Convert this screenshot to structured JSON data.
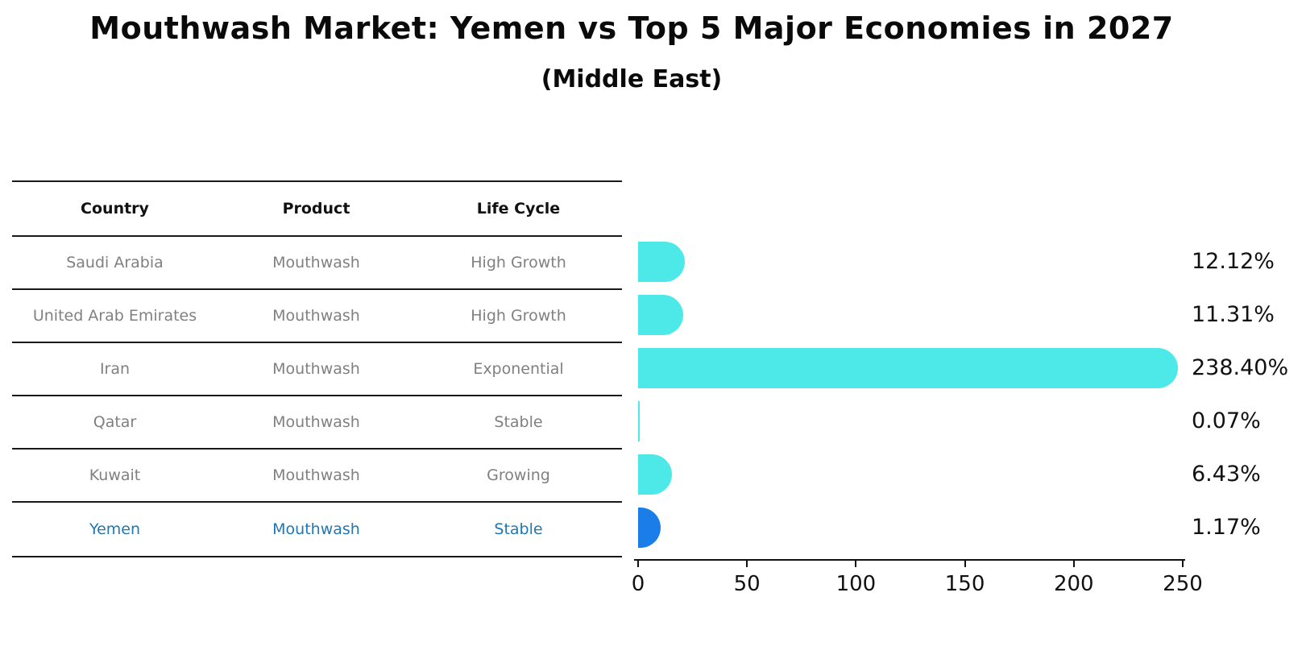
{
  "header": {
    "title": "Mouthwash Market: Yemen vs Top 5 Major Economies in 2027",
    "subtitle": "(Middle East)"
  },
  "table": {
    "columns": [
      "Country",
      "Product",
      "Life Cycle"
    ],
    "rows": [
      {
        "country": "Saudi Arabia",
        "product": "Mouthwash",
        "life_cycle": "High Growth",
        "highlight": false
      },
      {
        "country": "United Arab Emirates",
        "product": "Mouthwash",
        "life_cycle": "High Growth",
        "highlight": false
      },
      {
        "country": "Iran",
        "product": "Mouthwash",
        "life_cycle": "Exponential",
        "highlight": false
      },
      {
        "country": "Qatar",
        "product": "Mouthwash",
        "life_cycle": "Stable",
        "highlight": false
      },
      {
        "country": "Kuwait",
        "product": "Mouthwash",
        "life_cycle": "Growing",
        "highlight": false
      },
      {
        "country": "Yemen",
        "product": "Mouthwash",
        "life_cycle": "Stable",
        "highlight": true
      }
    ]
  },
  "chart_data": {
    "type": "bar",
    "orientation": "horizontal",
    "title": "Mouthwash Market: Yemen vs Top 5 Major Economies in 2027",
    "subtitle": "(Middle East)",
    "categories": [
      "Saudi Arabia",
      "United Arab Emirates",
      "Iran",
      "Qatar",
      "Kuwait",
      "Yemen"
    ],
    "values": [
      12.12,
      11.31,
      238.4,
      0.07,
      6.43,
      1.17
    ],
    "value_labels": [
      "12.12%",
      "11.31%",
      "238.40%",
      "0.07%",
      "6.43%",
      "1.17%"
    ],
    "xlim": [
      0,
      250
    ],
    "x_ticks": [
      0,
      50,
      100,
      150,
      200,
      250
    ],
    "x_tick_labels": [
      "0",
      "50",
      "100",
      "150",
      "200",
      "250"
    ],
    "grid": false,
    "legend": false,
    "bar_color": "#4DE9E8",
    "highlight_color": "#1A7DE8",
    "highlight_index": 5,
    "highlight_text_color": "#1f77b4"
  }
}
